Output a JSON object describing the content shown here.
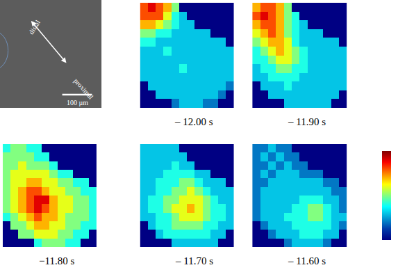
{
  "chart_data": {
    "type": "heatmap",
    "tick_labels": false,
    "image": {
      "labels": [
        "distal",
        "proximal"
      ],
      "scale_bar": "100 µm"
    },
    "colorbar_range": [
      0,
      10
    ],
    "panels": [
      {
        "title": "– 12.00 s",
        "cells": [
          [
            8,
            9,
            8,
            7,
            5,
            0,
            0,
            0,
            0,
            0,
            0,
            0
          ],
          [
            8,
            8,
            8,
            6,
            4,
            3,
            0,
            0,
            0,
            0,
            0,
            0
          ],
          [
            7,
            7,
            6,
            5,
            4,
            3,
            3,
            0,
            0,
            0,
            0,
            0
          ],
          [
            5,
            5,
            4,
            4,
            3,
            3,
            3,
            3,
            3,
            0,
            0,
            0
          ],
          [
            4,
            4,
            3,
            3,
            3,
            3,
            3,
            3,
            3,
            3,
            3,
            0
          ],
          [
            3,
            3,
            3,
            4,
            3,
            3,
            3,
            3,
            3,
            3,
            3,
            3
          ],
          [
            3,
            3,
            3,
            3,
            3,
            3,
            3,
            3,
            3,
            3,
            3,
            3
          ],
          [
            3,
            3,
            3,
            3,
            3,
            4,
            3,
            3,
            3,
            3,
            3,
            3
          ],
          [
            3,
            3,
            3,
            3,
            3,
            3,
            3,
            3,
            3,
            3,
            3,
            3
          ],
          [
            0,
            3,
            3,
            3,
            3,
            3,
            3,
            3,
            3,
            3,
            3,
            2
          ],
          [
            0,
            0,
            3,
            3,
            3,
            3,
            3,
            3,
            3,
            3,
            2,
            0
          ],
          [
            0,
            0,
            0,
            0,
            2,
            3,
            3,
            3,
            2,
            2,
            0,
            0
          ]
        ]
      },
      {
        "title": "– 11.90 s",
        "cells": [
          [
            7,
            8,
            8,
            7,
            5,
            0,
            0,
            0,
            0,
            0,
            0,
            0
          ],
          [
            8,
            9,
            8,
            7,
            5,
            4,
            0,
            0,
            0,
            0,
            0,
            0
          ],
          [
            7,
            8,
            8,
            7,
            5,
            4,
            3,
            0,
            0,
            0,
            0,
            0
          ],
          [
            6,
            7,
            8,
            7,
            5,
            4,
            3,
            3,
            3,
            0,
            0,
            0
          ],
          [
            5,
            6,
            7,
            7,
            6,
            4,
            3,
            3,
            3,
            3,
            3,
            0
          ],
          [
            4,
            5,
            6,
            7,
            6,
            5,
            4,
            3,
            3,
            3,
            3,
            3
          ],
          [
            4,
            4,
            5,
            6,
            6,
            5,
            4,
            3,
            3,
            3,
            3,
            3
          ],
          [
            3,
            4,
            4,
            5,
            5,
            4,
            4,
            3,
            3,
            3,
            3,
            3
          ],
          [
            3,
            3,
            4,
            4,
            4,
            4,
            3,
            3,
            3,
            3,
            3,
            3
          ],
          [
            0,
            3,
            3,
            3,
            4,
            3,
            3,
            3,
            3,
            3,
            3,
            3
          ],
          [
            0,
            0,
            3,
            3,
            3,
            3,
            3,
            3,
            3,
            3,
            3,
            0
          ],
          [
            0,
            0,
            0,
            0,
            3,
            3,
            3,
            3,
            3,
            3,
            0,
            0
          ]
        ]
      },
      {
        "title": "−11.80 s",
        "cells": [
          [
            4,
            5,
            5,
            4,
            4,
            0,
            0,
            0,
            0,
            0,
            0,
            0
          ],
          [
            5,
            5,
            5,
            5,
            4,
            4,
            0,
            0,
            0,
            0,
            0,
            0
          ],
          [
            5,
            5,
            6,
            5,
            5,
            5,
            4,
            0,
            0,
            0,
            0,
            0
          ],
          [
            5,
            6,
            6,
            6,
            6,
            6,
            5,
            4,
            4,
            0,
            0,
            0
          ],
          [
            5,
            6,
            6,
            7,
            7,
            6,
            6,
            5,
            5,
            4,
            4,
            0
          ],
          [
            5,
            6,
            7,
            8,
            8,
            7,
            6,
            6,
            5,
            5,
            4,
            4
          ],
          [
            5,
            6,
            7,
            8,
            9,
            9,
            7,
            6,
            6,
            5,
            5,
            4
          ],
          [
            5,
            6,
            7,
            8,
            9,
            8,
            7,
            6,
            6,
            5,
            5,
            4
          ],
          [
            4,
            5,
            6,
            7,
            8,
            7,
            7,
            6,
            5,
            5,
            5,
            4
          ],
          [
            0,
            5,
            5,
            6,
            7,
            7,
            6,
            6,
            5,
            5,
            4,
            4
          ],
          [
            0,
            0,
            5,
            5,
            6,
            6,
            6,
            5,
            5,
            4,
            4,
            0
          ],
          [
            0,
            0,
            0,
            0,
            4,
            5,
            5,
            5,
            4,
            4,
            0,
            0
          ]
        ]
      },
      {
        "title": "– 11.70 s",
        "cells": [
          [
            3,
            3,
            3,
            3,
            3,
            0,
            0,
            0,
            0,
            0,
            0,
            0
          ],
          [
            3,
            3,
            3,
            3,
            3,
            3,
            0,
            0,
            0,
            0,
            0,
            0
          ],
          [
            3,
            3,
            3,
            3,
            4,
            3,
            3,
            0,
            0,
            0,
            0,
            0
          ],
          [
            3,
            3,
            3,
            4,
            4,
            4,
            4,
            3,
            3,
            0,
            0,
            0
          ],
          [
            3,
            3,
            4,
            4,
            4,
            5,
            5,
            4,
            3,
            3,
            3,
            0
          ],
          [
            3,
            3,
            4,
            4,
            5,
            5,
            6,
            5,
            4,
            3,
            3,
            3
          ],
          [
            3,
            4,
            4,
            5,
            5,
            6,
            6,
            6,
            5,
            4,
            3,
            3
          ],
          [
            3,
            4,
            4,
            5,
            6,
            6,
            7,
            6,
            5,
            4,
            4,
            3
          ],
          [
            3,
            3,
            4,
            4,
            5,
            6,
            6,
            6,
            5,
            4,
            4,
            3
          ],
          [
            0,
            3,
            4,
            4,
            5,
            5,
            5,
            5,
            4,
            4,
            3,
            3
          ],
          [
            0,
            0,
            3,
            4,
            4,
            4,
            4,
            4,
            4,
            3,
            3,
            0
          ],
          [
            0,
            0,
            0,
            0,
            3,
            3,
            3,
            3,
            3,
            3,
            0,
            0
          ]
        ]
      },
      {
        "title": "– 11.60 s",
        "cells": [
          [
            2,
            2,
            3,
            2,
            2,
            0,
            0,
            0,
            0,
            0,
            0,
            0
          ],
          [
            2,
            3,
            2,
            3,
            2,
            2,
            0,
            0,
            0,
            0,
            0,
            0
          ],
          [
            2,
            2,
            3,
            2,
            3,
            2,
            2,
            0,
            0,
            0,
            0,
            0
          ],
          [
            2,
            3,
            2,
            3,
            3,
            3,
            2,
            2,
            2,
            0,
            0,
            0
          ],
          [
            2,
            2,
            3,
            3,
            3,
            3,
            3,
            3,
            3,
            2,
            2,
            0
          ],
          [
            2,
            3,
            3,
            3,
            3,
            3,
            3,
            3,
            3,
            3,
            2,
            2
          ],
          [
            2,
            3,
            3,
            3,
            3,
            3,
            4,
            4,
            4,
            3,
            3,
            2
          ],
          [
            2,
            3,
            3,
            3,
            3,
            4,
            4,
            5,
            5,
            4,
            3,
            2
          ],
          [
            2,
            3,
            3,
            3,
            4,
            4,
            4,
            5,
            5,
            4,
            3,
            3
          ],
          [
            0,
            2,
            3,
            3,
            3,
            4,
            4,
            4,
            4,
            4,
            3,
            2
          ],
          [
            0,
            0,
            2,
            3,
            3,
            3,
            4,
            4,
            4,
            3,
            3,
            0
          ],
          [
            0,
            0,
            0,
            0,
            2,
            3,
            3,
            3,
            3,
            2,
            0,
            0
          ]
        ]
      }
    ]
  }
}
